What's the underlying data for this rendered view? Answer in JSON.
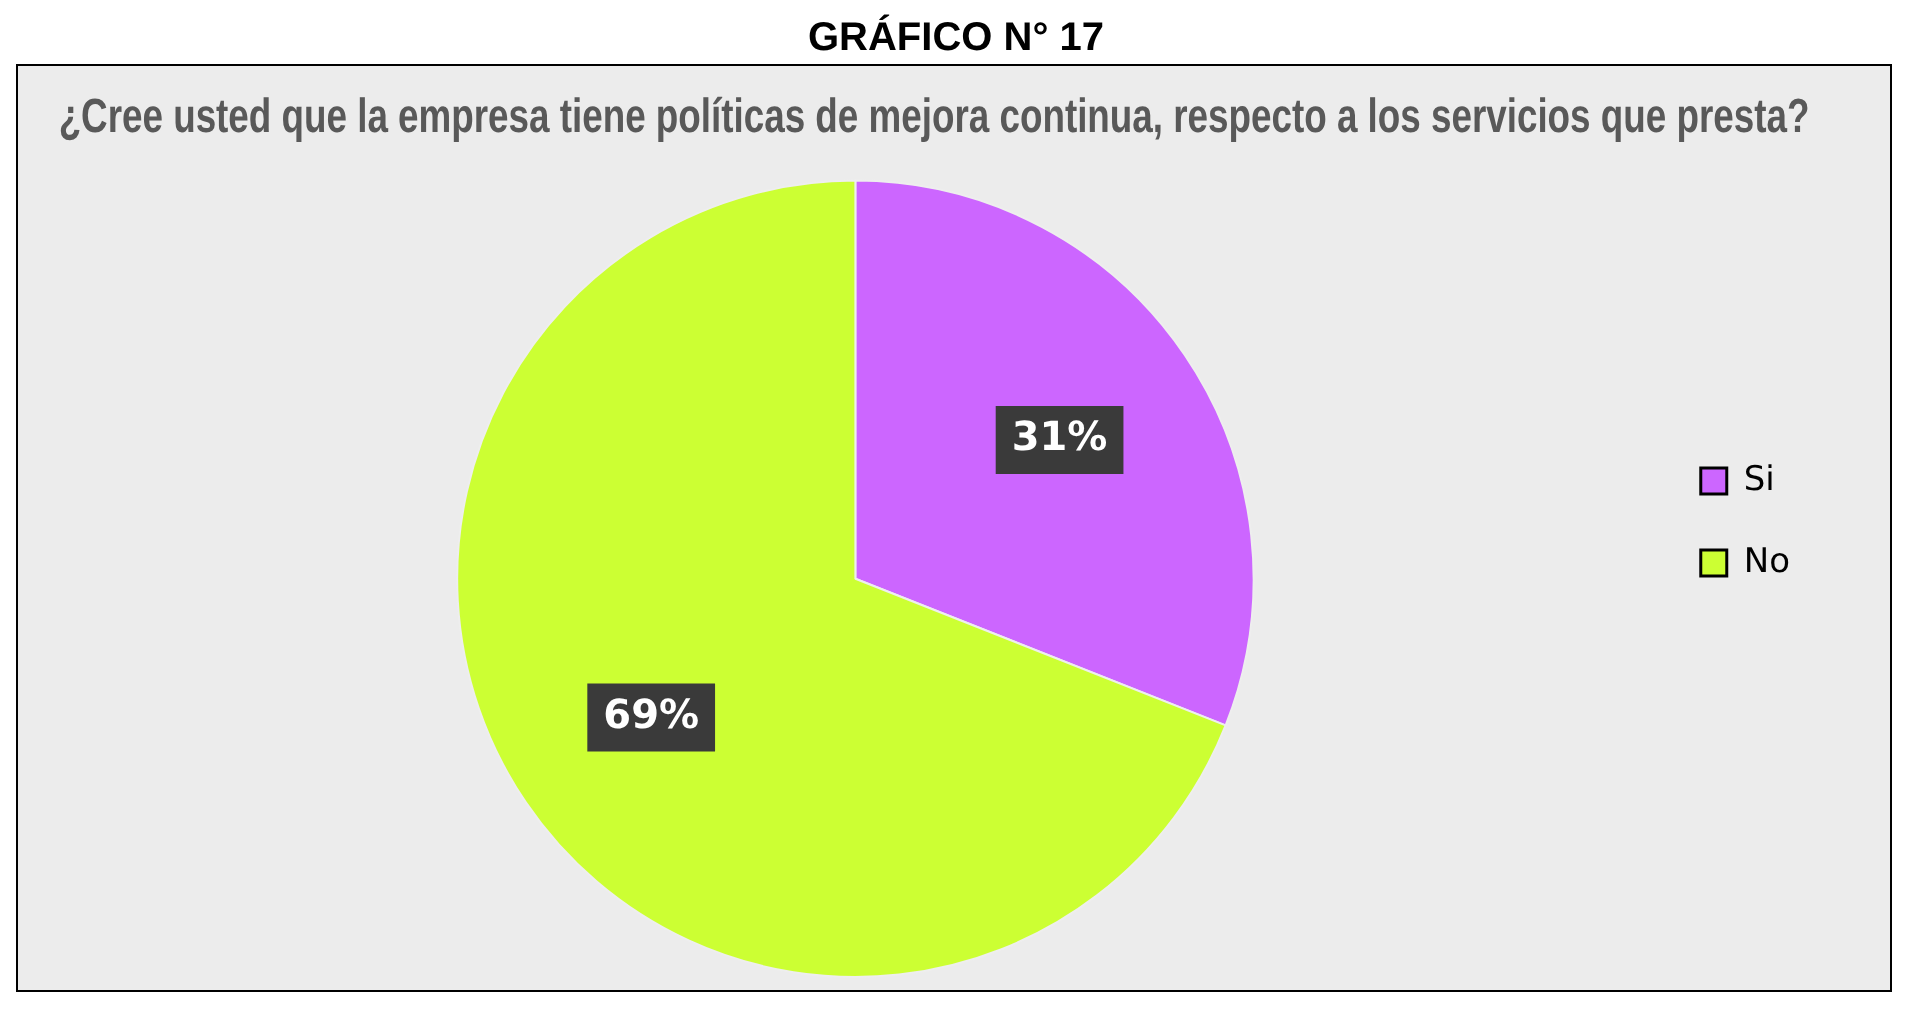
{
  "chart_data": {
    "type": "pie",
    "title": "¿Cree usted que la empresa tiene políticas de mejora continua, respecto a los servicios que presta?",
    "annotations": [
      "GRÁFICO N° 17"
    ],
    "categories": [
      "Si",
      "No"
    ],
    "values": [
      31,
      69
    ],
    "colors": [
      "#cc66ff",
      "#ccff33"
    ],
    "value_labels": [
      "31%",
      "69%"
    ],
    "legend": "right"
  }
}
